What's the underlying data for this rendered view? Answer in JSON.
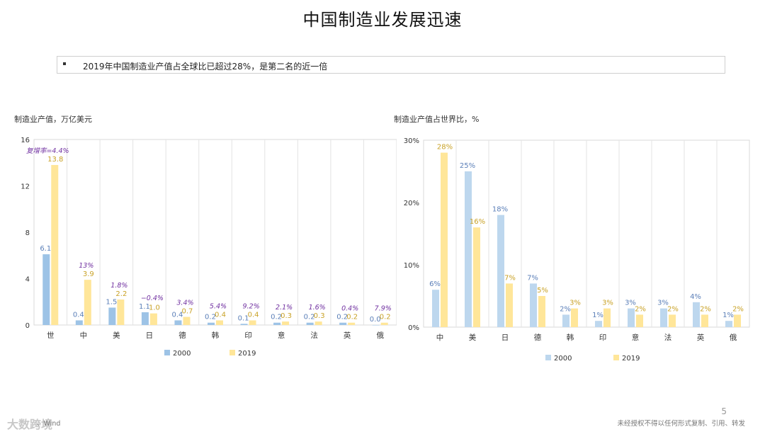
{
  "title": "中国制造业发展迅速",
  "bullet": "2019年中国制造业产值占全球比已超过28%，是第二名的近一倍",
  "left_chart_label": "制造业产值，万亿美元",
  "right_chart_label": "制造业产值占世界比，%",
  "footer": {
    "source": "、Wind",
    "note": "未经授权不得以任何形式复制、引用、转发",
    "page": "5",
    "watermark": "大数跨境"
  },
  "colors": {
    "s2000_left": "#9dc3e6",
    "s2019": "#ffe699",
    "s2000_right": "#bdd7ee",
    "label2000": "#5b7fb8",
    "label2019": "#c9a227",
    "growth": "#7030a0"
  },
  "chart_data": [
    {
      "type": "bar",
      "categories": [
        "世",
        "中",
        "美",
        "日",
        "德",
        "韩",
        "印",
        "意",
        "法",
        "英",
        "俄"
      ],
      "series": [
        {
          "name": "2000",
          "values": [
            6.1,
            0.4,
            1.5,
            1.1,
            0.4,
            0.2,
            0.1,
            0.2,
            0.2,
            0.2,
            0.0
          ],
          "labels": [
            "6.1",
            "0.4",
            "1.5",
            "1.1",
            "0.4",
            "0.2",
            "0.1",
            "0.2",
            "0.2",
            "0.2",
            "0.0"
          ]
        },
        {
          "name": "2019",
          "values": [
            13.8,
            3.9,
            2.2,
            1.0,
            0.7,
            0.4,
            0.4,
            0.3,
            0.3,
            0.2,
            0.2
          ],
          "labels": [
            "13.8",
            "3.9",
            "2.2",
            "1.0",
            "0.7",
            "0.4",
            "0.4",
            "0.3",
            "0.3",
            "0.2",
            "0.2"
          ]
        }
      ],
      "annotations": [
        "复增率=4.4%",
        "13%",
        "1.8%",
        "−0.4%",
        "3.4%",
        "5.4%",
        "9.2%",
        "2.1%",
        "1.6%",
        "0.4%",
        "7.9%"
      ],
      "yticks": [
        "0",
        "4",
        "8",
        "12",
        "16"
      ],
      "ylim": [
        0,
        16
      ],
      "legend": "bottom"
    },
    {
      "type": "bar",
      "categories": [
        "中",
        "美",
        "日",
        "德",
        "韩",
        "印",
        "意",
        "法",
        "英",
        "俄"
      ],
      "series": [
        {
          "name": "2000",
          "values": [
            6,
            25,
            18,
            7,
            2,
            1,
            3,
            3,
            4,
            1
          ],
          "labels": [
            "6%",
            "25%",
            "18%",
            "7%",
            "2%",
            "1%",
            "3%",
            "3%",
            "4%",
            "1%"
          ]
        },
        {
          "name": "2019",
          "values": [
            28,
            16,
            7,
            5,
            3,
            3,
            2,
            2,
            2,
            2
          ],
          "labels": [
            "28%",
            "16%",
            "7%",
            "5%",
            "3%",
            "3%",
            "2%",
            "2%",
            "2%",
            "2%"
          ]
        }
      ],
      "yticks": [
        "0%",
        "10%",
        "20%",
        "30%"
      ],
      "ylim": [
        0,
        30
      ],
      "legend": "bottom"
    }
  ]
}
